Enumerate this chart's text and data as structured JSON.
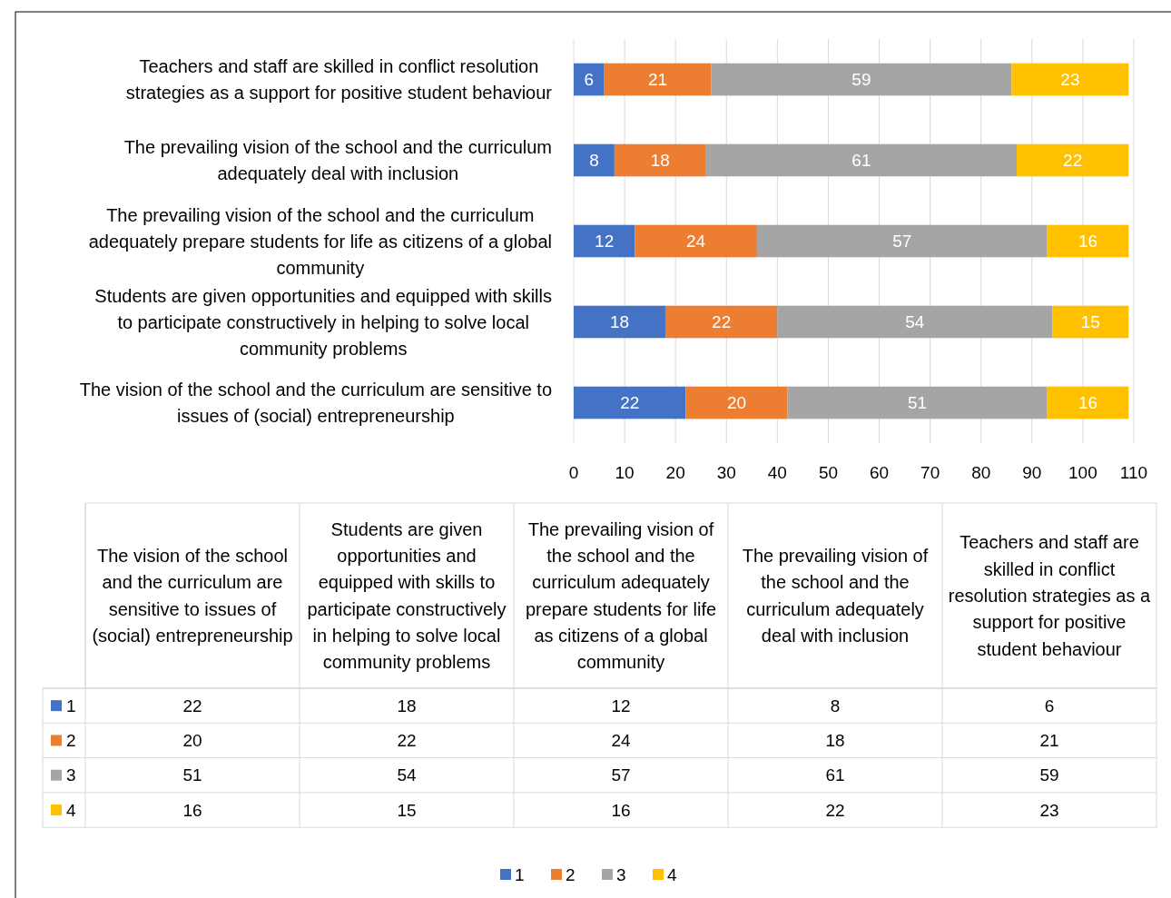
{
  "chart_data": [
    {
      "type": "bar",
      "orientation": "horizontal",
      "stacked": true,
      "categories": [
        "Teachers and staff are skilled in conflict resolution strategies as a support for positive student behaviour",
        "The prevailing vision of the school and the curriculum adequately deal with inclusion",
        "The prevailing vision of the school and the curriculum adequately prepare students for life as citizens of a global community",
        "Students are given opportunities and equipped with skills to participate constructively in helping to solve local community problems",
        "The vision of the school and the curriculum are sensitive to issues of (social) entrepreneurship"
      ],
      "series": [
        {
          "name": "1",
          "color": "#4472c4",
          "values": [
            6,
            8,
            12,
            18,
            22
          ]
        },
        {
          "name": "2",
          "color": "#ed7d31",
          "values": [
            21,
            18,
            24,
            22,
            20
          ]
        },
        {
          "name": "3",
          "color": "#a5a5a5",
          "values": [
            59,
            61,
            57,
            54,
            51
          ]
        },
        {
          "name": "4",
          "color": "#ffc000",
          "values": [
            23,
            22,
            16,
            15,
            16
          ]
        }
      ],
      "xlim": [
        0,
        110
      ],
      "xticks": [
        0,
        10,
        20,
        30,
        40,
        50,
        60,
        70,
        80,
        90,
        100,
        110
      ],
      "grid": "x",
      "data_labels": true,
      "legend": "bottom"
    },
    {
      "type": "heatmap",
      "data_labels": true,
      "categories": [
        "The vision of the school and the curriculum are sensitive to issues of (social) entrepreneurship",
        "Students are given opportunities and equipped with skills to participate constructively in helping to solve local community problems",
        "The prevailing vision of the school and the curriculum adequately prepare students for life as citizens of a global community",
        "The prevailing vision of the school and the curriculum adequately deal with inclusion",
        "Teachers and staff are skilled in conflict resolution strategies as a support for positive student behaviour"
      ],
      "y_categories": [
        "1",
        "2",
        "3",
        "4"
      ],
      "cells": [
        [
          22,
          18,
          12,
          8,
          6
        ],
        [
          20,
          22,
          24,
          18,
          21
        ],
        [
          51,
          54,
          57,
          61,
          59
        ],
        [
          16,
          15,
          16,
          22,
          23
        ]
      ]
    }
  ]
}
